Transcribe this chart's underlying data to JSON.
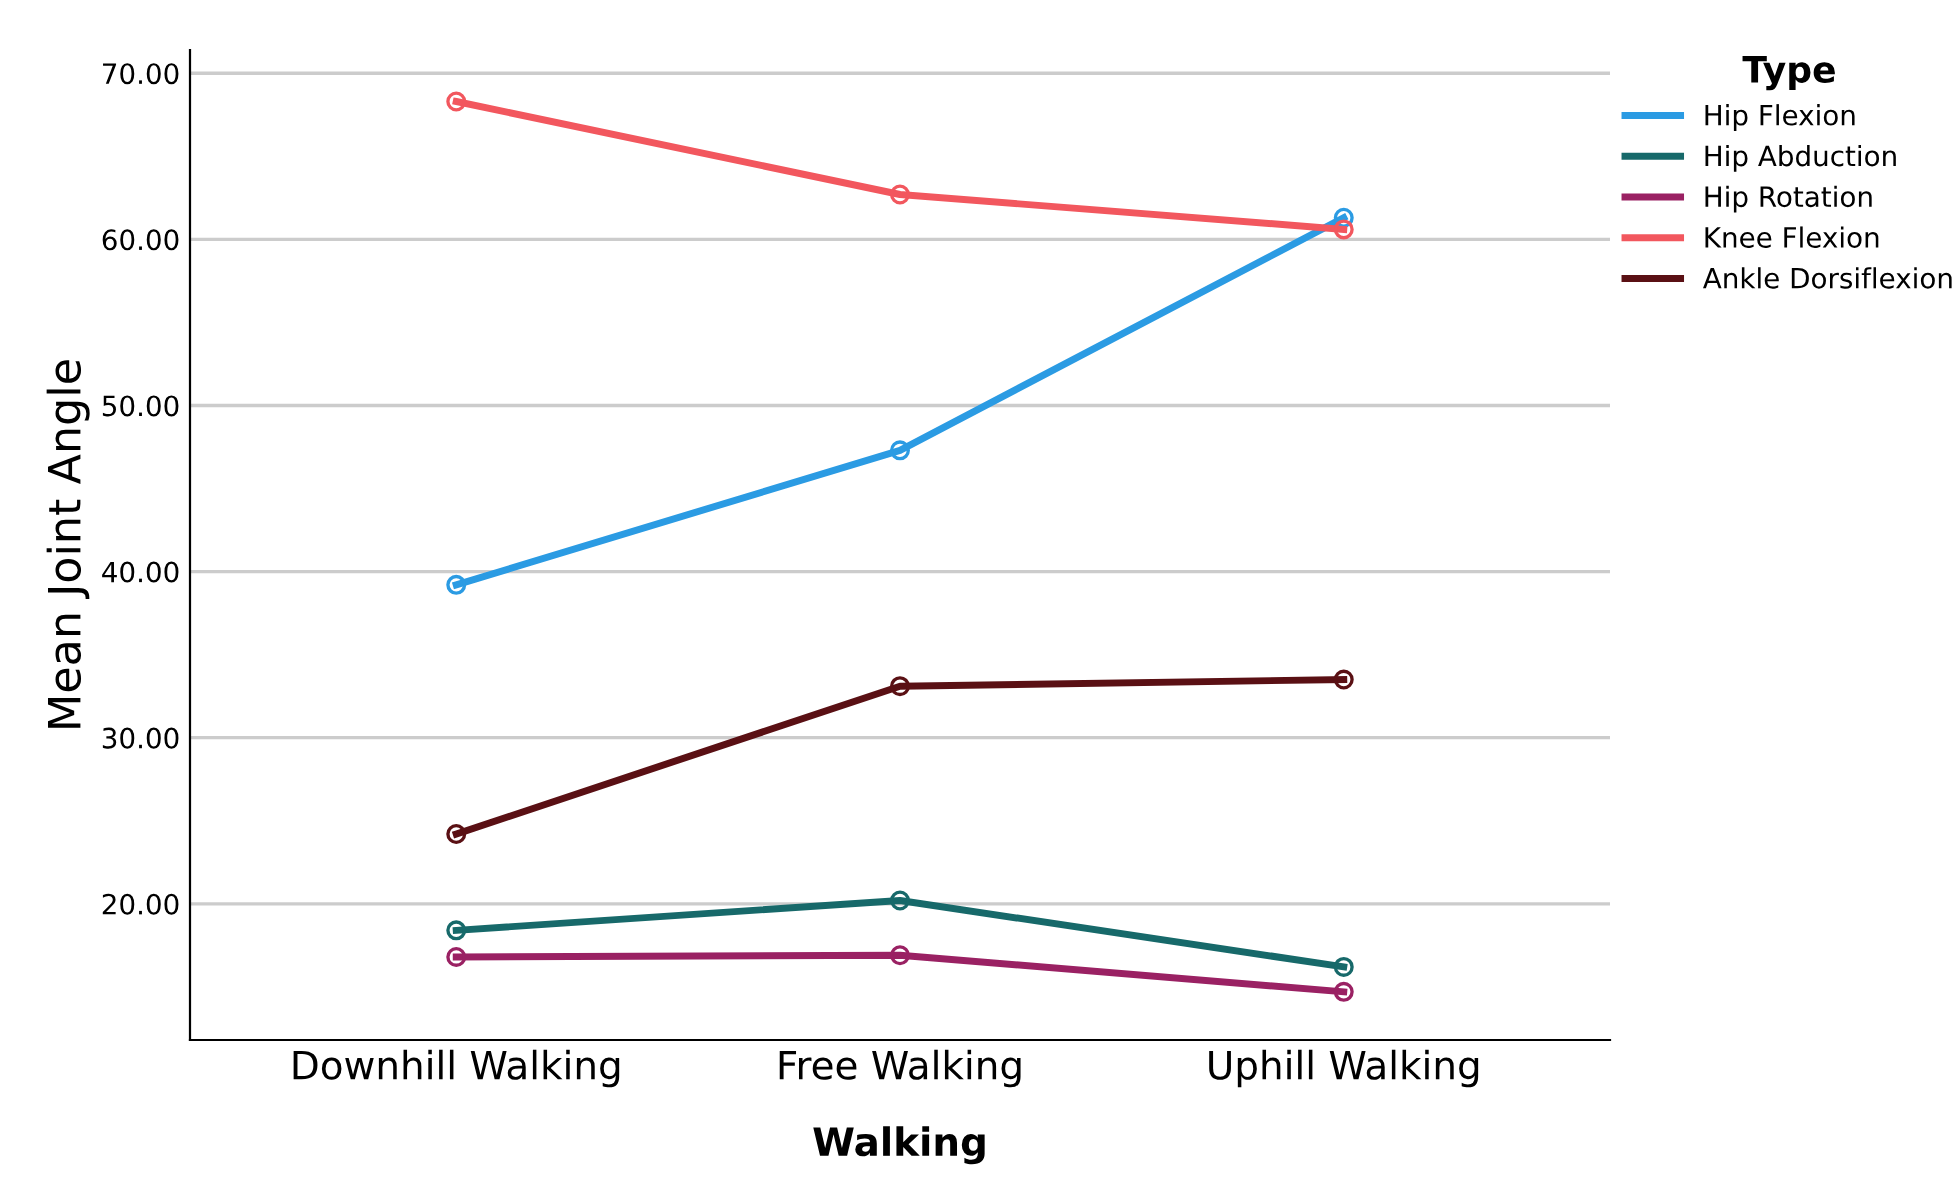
{
  "chart_data": {
    "type": "line",
    "xlabel": "Walking",
    "ylabel": "Mean Joint Angle",
    "legend_title": "Type",
    "categories": [
      "Downhill Walking",
      "Free Walking",
      "Uphill Walking"
    ],
    "series": [
      {
        "name": "Hip Flexion",
        "color": "#2b9be3",
        "values": [
          39.2,
          47.3,
          61.3
        ]
      },
      {
        "name": "Hip Abduction",
        "color": "#17696a",
        "values": [
          18.4,
          20.2,
          16.2
        ]
      },
      {
        "name": "Hip Rotation",
        "color": "#9a2163",
        "values": [
          16.8,
          16.9,
          14.7
        ]
      },
      {
        "name": "Knee Flexion",
        "color": "#f2575e",
        "values": [
          68.3,
          62.7,
          60.6
        ]
      },
      {
        "name": "Ankle Dorsiflexion",
        "color": "#5a1014",
        "values": [
          24.2,
          33.1,
          33.5
        ]
      }
    ],
    "ylim": [
      11.8,
      71.4
    ],
    "yticks": [
      {
        "value": 20,
        "label": "20.00"
      },
      {
        "value": 30,
        "label": "30.00"
      },
      {
        "value": 40,
        "label": "40.00"
      },
      {
        "value": 50,
        "label": "50.00"
      },
      {
        "value": 60,
        "label": "60.00"
      },
      {
        "value": 70,
        "label": "70.00"
      }
    ],
    "grid": "y",
    "legend": "top right",
    "marker": "circle",
    "line_style": "solid"
  }
}
